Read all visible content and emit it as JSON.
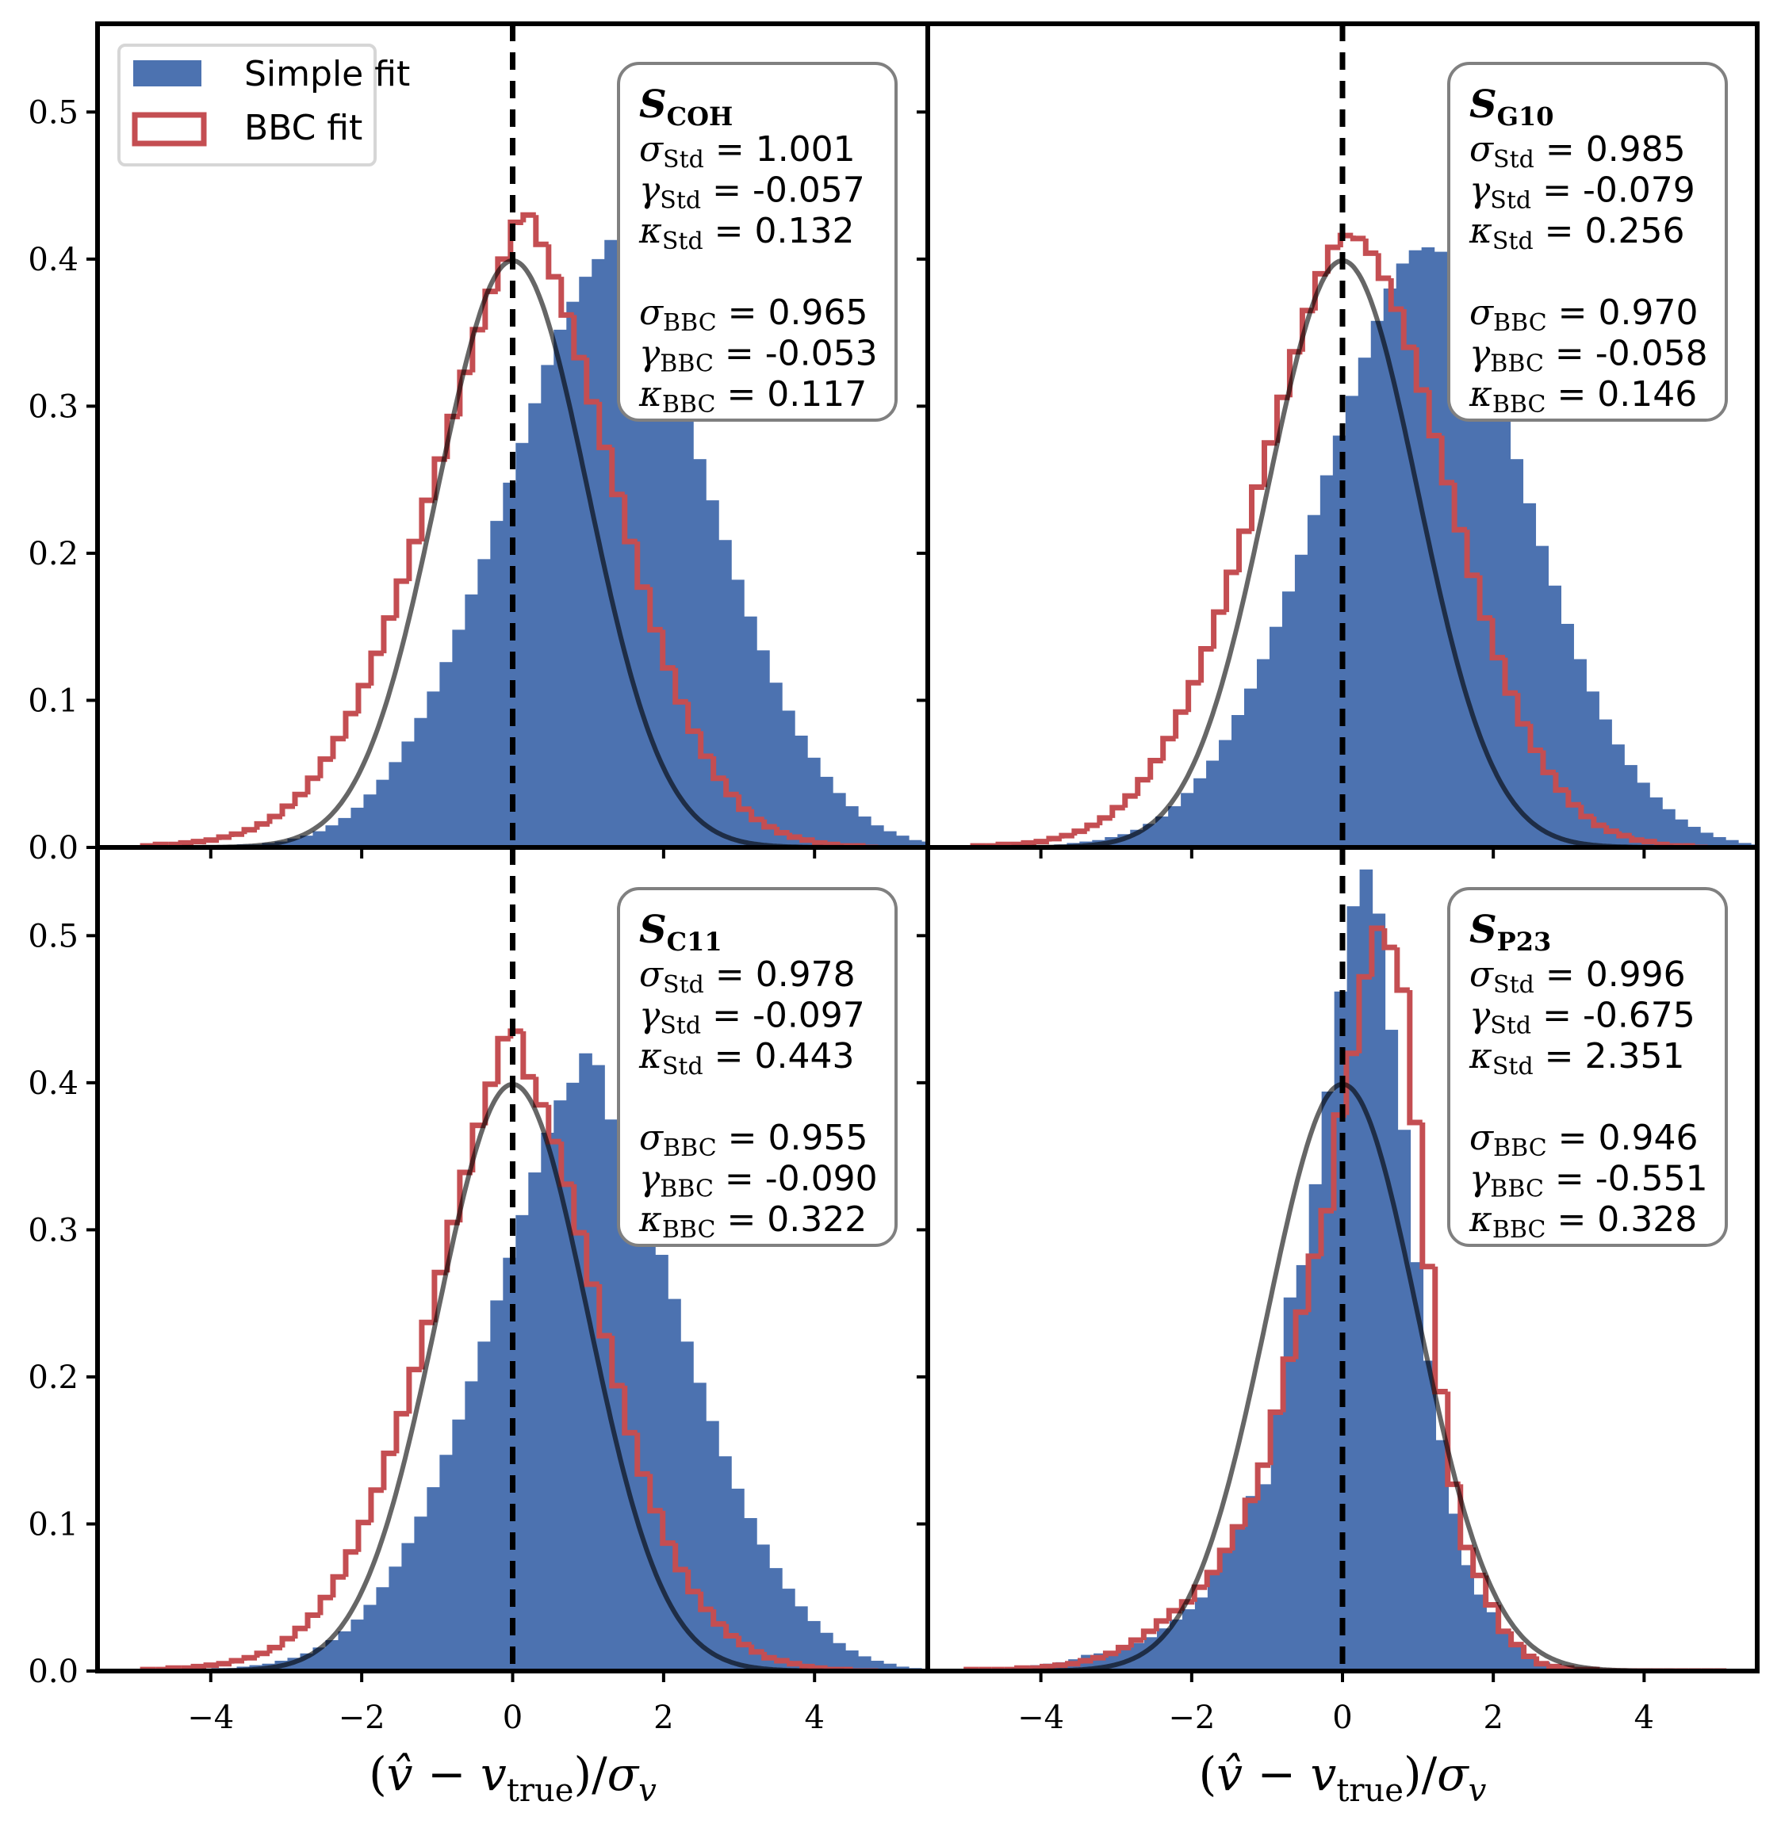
{
  "figure": {
    "legend": {
      "items": [
        {
          "label": "Simple fit",
          "style": "filled",
          "color": "#4c72b0"
        },
        {
          "label": "BBC fit",
          "style": "step-outline",
          "color": "#c44e52"
        }
      ]
    },
    "colors": {
      "simple": "#4c72b0",
      "bbc": "#c44e52",
      "gaussian": "#000000",
      "gaussian_alpha": 0.6,
      "zero_line": "#000000"
    },
    "xlabel": {
      "open": "(",
      "vhat": "v̂",
      "minus": " − ",
      "v": "v",
      "true_sub": "true",
      "close": ")/",
      "sigma": "σ",
      "sigma_sub": "v"
    },
    "symbols": {
      "sigma": "σ",
      "gamma": "γ",
      "kappa": "κ",
      "std": "Std",
      "bbc": "BBC",
      "eq": " = ",
      "S": "S"
    }
  },
  "chart_data": [
    {
      "panel": "top-left",
      "type": "bar",
      "title_symbol": "S",
      "title_subscript": "COH",
      "xlabel": "",
      "ylabel": "",
      "xlim": [
        -5.5,
        5.5
      ],
      "ylim": [
        0,
        0.56
      ],
      "xticks": [
        -4,
        -2,
        0,
        2,
        4
      ],
      "yticks": [
        0.0,
        0.1,
        0.2,
        0.3,
        0.4,
        0.5
      ],
      "ytick_labels": [
        "0.0",
        "0.1",
        "0.2",
        "0.3",
        "0.4",
        "0.5"
      ],
      "xtick_labels": [],
      "show_yticklabels": true,
      "show_xticklabels": false,
      "vline_x": 0,
      "gaussian": {
        "mu": 0,
        "sigma": 1
      },
      "stats": {
        "sigma_std": "1.001",
        "gamma_std": "-0.057",
        "kappa_std": "0.132",
        "sigma_bbc": "0.965",
        "gamma_bbc": "-0.053",
        "kappa_bbc": "0.117"
      },
      "series": [
        {
          "name": "Simple fit",
          "kind": "filled",
          "bin_start": -5.0,
          "bin_width": 0.168,
          "values": [
            0,
            0,
            0,
            0,
            0,
            0,
            0.001,
            0.001,
            0.002,
            0.002,
            0.003,
            0.004,
            0.006,
            0.008,
            0.011,
            0.015,
            0.02,
            0.027,
            0.036,
            0.046,
            0.058,
            0.072,
            0.088,
            0.106,
            0.126,
            0.148,
            0.172,
            0.196,
            0.222,
            0.248,
            0.275,
            0.302,
            0.328,
            0.352,
            0.371,
            0.388,
            0.4,
            0.413,
            0.405,
            0.385,
            0.365,
            0.342,
            0.318,
            0.292,
            0.264,
            0.236,
            0.209,
            0.182,
            0.157,
            0.134,
            0.112,
            0.093,
            0.076,
            0.061,
            0.048,
            0.037,
            0.028,
            0.021,
            0.015,
            0.011,
            0.008,
            0.005,
            0.004,
            0.002,
            0.001,
            0.001,
            0,
            0
          ]
        },
        {
          "name": "BBC fit",
          "kind": "step",
          "bin_start": -4.9,
          "bin_width": 0.168,
          "values": [
            0.001,
            0.002,
            0.002,
            0.003,
            0.004,
            0.005,
            0.007,
            0.009,
            0.012,
            0.016,
            0.021,
            0.028,
            0.036,
            0.047,
            0.06,
            0.074,
            0.091,
            0.11,
            0.132,
            0.156,
            0.181,
            0.208,
            0.236,
            0.264,
            0.293,
            0.323,
            0.352,
            0.378,
            0.4,
            0.425,
            0.43,
            0.41,
            0.388,
            0.362,
            0.333,
            0.303,
            0.272,
            0.24,
            0.208,
            0.177,
            0.148,
            0.122,
            0.099,
            0.079,
            0.062,
            0.047,
            0.036,
            0.026,
            0.019,
            0.014,
            0.01,
            0.007,
            0.005,
            0.003,
            0.002,
            0.001,
            0.001,
            0
          ]
        }
      ]
    },
    {
      "panel": "top-right",
      "type": "bar",
      "title_symbol": "S",
      "title_subscript": "G10",
      "xlabel": "",
      "ylabel": "",
      "xlim": [
        -5.5,
        5.5
      ],
      "ylim": [
        0,
        0.56
      ],
      "xticks": [
        -4,
        -2,
        0,
        2,
        4
      ],
      "yticks": [
        0.0,
        0.1,
        0.2,
        0.3,
        0.4,
        0.5
      ],
      "ytick_labels": [],
      "xtick_labels": [],
      "show_yticklabels": false,
      "show_xticklabels": false,
      "vline_x": 0,
      "gaussian": {
        "mu": 0,
        "sigma": 1
      },
      "stats": {
        "sigma_std": "0.985",
        "gamma_std": "-0.079",
        "kappa_std": "0.256",
        "sigma_bbc": "0.970",
        "gamma_bbc": "-0.058",
        "kappa_bbc": "0.146"
      },
      "series": [
        {
          "name": "Simple fit",
          "kind": "filled",
          "bin_start": -5.0,
          "bin_width": 0.168,
          "values": [
            0,
            0,
            0,
            0,
            0.001,
            0.001,
            0.001,
            0.002,
            0.003,
            0.004,
            0.005,
            0.007,
            0.009,
            0.012,
            0.016,
            0.021,
            0.028,
            0.037,
            0.047,
            0.059,
            0.073,
            0.09,
            0.108,
            0.128,
            0.15,
            0.174,
            0.199,
            0.226,
            0.253,
            0.28,
            0.307,
            0.333,
            0.358,
            0.38,
            0.397,
            0.406,
            0.408,
            0.405,
            0.393,
            0.374,
            0.35,
            0.323,
            0.294,
            0.264,
            0.234,
            0.205,
            0.178,
            0.152,
            0.128,
            0.106,
            0.087,
            0.07,
            0.056,
            0.044,
            0.034,
            0.026,
            0.019,
            0.014,
            0.01,
            0.007,
            0.005,
            0.003,
            0.002,
            0.001,
            0.001,
            0,
            0,
            0
          ]
        },
        {
          "name": "BBC fit",
          "kind": "step",
          "bin_start": -4.9,
          "bin_width": 0.168,
          "values": [
            0.001,
            0.001,
            0.002,
            0.002,
            0.003,
            0.004,
            0.006,
            0.008,
            0.011,
            0.015,
            0.02,
            0.027,
            0.035,
            0.046,
            0.059,
            0.074,
            0.092,
            0.112,
            0.135,
            0.16,
            0.187,
            0.215,
            0.245,
            0.275,
            0.306,
            0.337,
            0.365,
            0.39,
            0.408,
            0.416,
            0.414,
            0.404,
            0.387,
            0.366,
            0.34,
            0.311,
            0.28,
            0.248,
            0.216,
            0.185,
            0.156,
            0.129,
            0.105,
            0.084,
            0.066,
            0.051,
            0.039,
            0.029,
            0.021,
            0.015,
            0.011,
            0.008,
            0.005,
            0.004,
            0.002,
            0.001,
            0.001,
            0
          ]
        }
      ]
    },
    {
      "panel": "bottom-left",
      "type": "bar",
      "title_symbol": "S",
      "title_subscript": "C11",
      "xlabel": "(v̂ − v_true)/σ_v",
      "ylabel": "",
      "xlim": [
        -5.5,
        5.5
      ],
      "ylim": [
        0,
        0.56
      ],
      "xticks": [
        -4,
        -2,
        0,
        2,
        4
      ],
      "yticks": [
        0.0,
        0.1,
        0.2,
        0.3,
        0.4,
        0.5
      ],
      "ytick_labels": [
        "0.0",
        "0.1",
        "0.2",
        "0.3",
        "0.4",
        "0.5"
      ],
      "xtick_labels": [
        "−4",
        "−2",
        "0",
        "2",
        "4"
      ],
      "show_yticklabels": true,
      "show_xticklabels": true,
      "vline_x": 0,
      "gaussian": {
        "mu": 0,
        "sigma": 1
      },
      "stats": {
        "sigma_std": "0.978",
        "gamma_std": "-0.097",
        "kappa_std": "0.443",
        "sigma_bbc": "0.955",
        "gamma_bbc": "-0.090",
        "kappa_bbc": "0.322"
      },
      "series": [
        {
          "name": "Simple fit",
          "kind": "filled",
          "bin_start": -5.0,
          "bin_width": 0.168,
          "values": [
            0,
            0,
            0,
            0,
            0.001,
            0.001,
            0.002,
            0.002,
            0.003,
            0.004,
            0.005,
            0.007,
            0.009,
            0.012,
            0.016,
            0.021,
            0.027,
            0.035,
            0.045,
            0.057,
            0.071,
            0.087,
            0.105,
            0.125,
            0.147,
            0.171,
            0.197,
            0.224,
            0.252,
            0.281,
            0.31,
            0.339,
            0.366,
            0.388,
            0.4,
            0.42,
            0.412,
            0.375,
            0.362,
            0.336,
            0.31,
            0.283,
            0.253,
            0.224,
            0.196,
            0.17,
            0.146,
            0.124,
            0.104,
            0.086,
            0.07,
            0.056,
            0.044,
            0.034,
            0.026,
            0.019,
            0.014,
            0.01,
            0.007,
            0.005,
            0.003,
            0.002,
            0.001,
            0.001,
            0,
            0,
            0,
            0
          ]
        },
        {
          "name": "BBC fit",
          "kind": "step",
          "bin_start": -4.9,
          "bin_width": 0.168,
          "values": [
            0.001,
            0.001,
            0.002,
            0.002,
            0.003,
            0.004,
            0.005,
            0.007,
            0.009,
            0.012,
            0.016,
            0.022,
            0.029,
            0.038,
            0.05,
            0.064,
            0.081,
            0.101,
            0.123,
            0.148,
            0.175,
            0.205,
            0.237,
            0.271,
            0.305,
            0.339,
            0.371,
            0.399,
            0.43,
            0.435,
            0.404,
            0.385,
            0.36,
            0.331,
            0.298,
            0.263,
            0.228,
            0.194,
            0.162,
            0.134,
            0.109,
            0.087,
            0.069,
            0.054,
            0.042,
            0.032,
            0.024,
            0.018,
            0.013,
            0.009,
            0.007,
            0.005,
            0.003,
            0.002,
            0.001,
            0.001,
            0,
            0
          ]
        }
      ]
    },
    {
      "panel": "bottom-right",
      "type": "bar",
      "title_symbol": "S",
      "title_subscript": "P23",
      "xlabel": "(v̂ − v_true)/σ_v",
      "ylabel": "",
      "xlim": [
        -5.5,
        5.5
      ],
      "ylim": [
        0,
        0.56
      ],
      "xticks": [
        -4,
        -2,
        0,
        2,
        4
      ],
      "yticks": [
        0.0,
        0.1,
        0.2,
        0.3,
        0.4,
        0.5
      ],
      "ytick_labels": [],
      "xtick_labels": [
        "−4",
        "−2",
        "0",
        "2",
        "4"
      ],
      "show_yticklabels": false,
      "show_xticklabels": true,
      "vline_x": 0,
      "gaussian": {
        "mu": 0,
        "sigma": 1
      },
      "stats": {
        "sigma_std": "0.996",
        "gamma_std": "-0.675",
        "kappa_std": "2.351",
        "sigma_bbc": "0.946",
        "gamma_bbc": "-0.551",
        "kappa_bbc": "0.328"
      },
      "series": [
        {
          "name": "Simple fit",
          "kind": "filled",
          "bin_start": -4.477,
          "bin_width": 0.168,
          "values": [
            0.002,
            0.003,
            0.004,
            0.005,
            0.006,
            0.008,
            0.011,
            0.012,
            0.013,
            0.016,
            0.019,
            0.023,
            0.029,
            0.035,
            0.042,
            0.05,
            0.068,
            0.082,
            0.098,
            0.119,
            0.127,
            0.176,
            0.254,
            0.276,
            0.331,
            0.394,
            0.462,
            0.52,
            0.545,
            0.515,
            0.436,
            0.368,
            0.278,
            0.211,
            0.157,
            0.107,
            0.072,
            0.052,
            0.04,
            0.027,
            0.017,
            0.01,
            0.006,
            0.004,
            0.002,
            0.001,
            0.001,
            0,
            0,
            0,
            0,
            0,
            0,
            0,
            0,
            0,
            0,
            0,
            0
          ]
        },
        {
          "name": "BBC fit",
          "kind": "step",
          "bin_start": -4.988,
          "bin_width": 0.168,
          "values": [
            0.001,
            0.001,
            0.001,
            0.001,
            0.002,
            0.002,
            0.003,
            0.004,
            0.005,
            0.007,
            0.009,
            0.012,
            0.016,
            0.021,
            0.027,
            0.034,
            0.041,
            0.047,
            0.057,
            0.067,
            0.082,
            0.098,
            0.116,
            0.14,
            0.176,
            0.212,
            0.244,
            0.282,
            0.313,
            0.378,
            0.42,
            0.472,
            0.505,
            0.492,
            0.463,
            0.373,
            0.275,
            0.19,
            0.127,
            0.084,
            0.065,
            0.045,
            0.027,
            0.018,
            0.01,
            0.005,
            0.003,
            0.002,
            0.001,
            0.001,
            0,
            0,
            0,
            0,
            0,
            0,
            0,
            0,
            0,
            0
          ]
        }
      ]
    }
  ]
}
